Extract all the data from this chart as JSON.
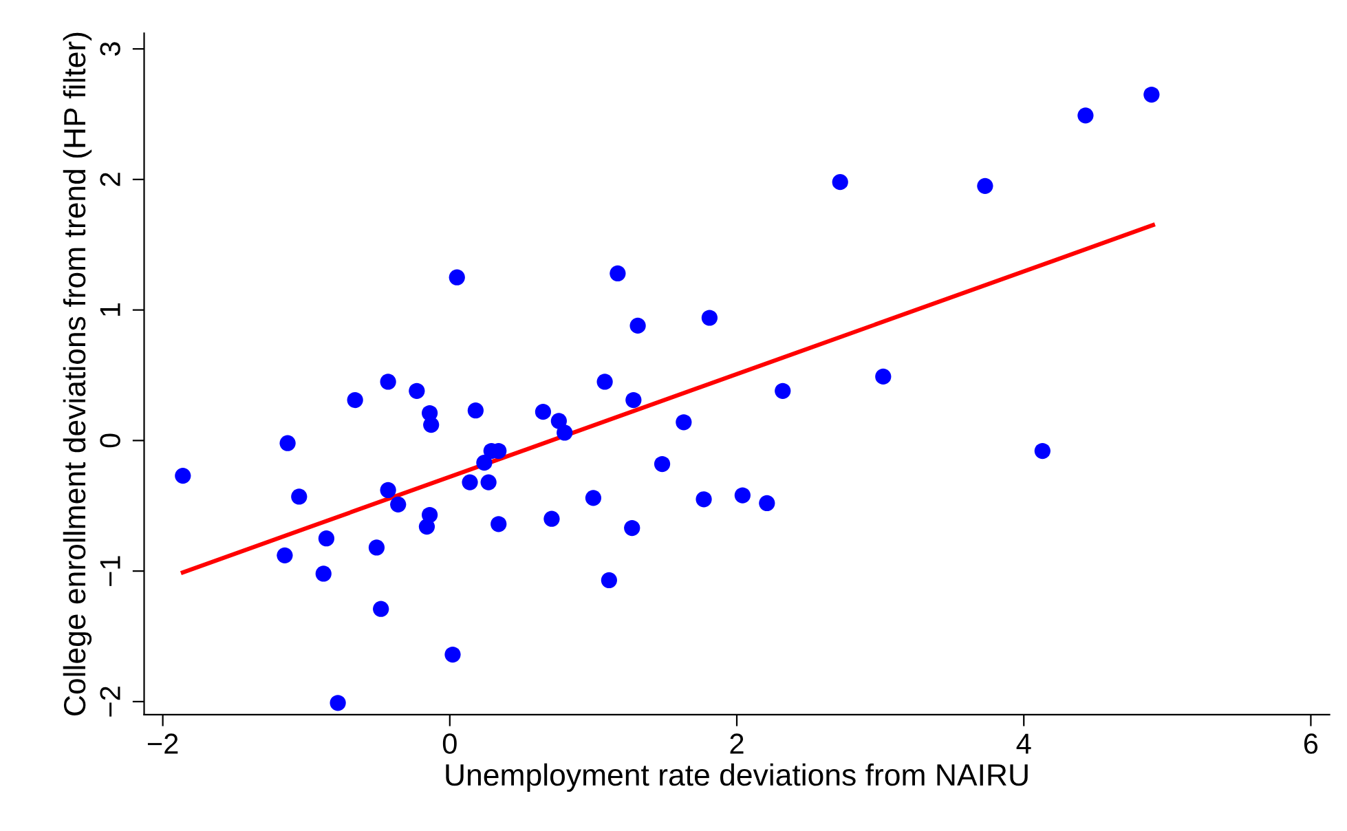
{
  "chart_data": {
    "type": "scatter",
    "xlabel": "Unemployment rate deviations from NAIRU",
    "ylabel": "College enrollment deviations from trend (HP filter)",
    "xlim": [
      -2.13,
      6.13
    ],
    "ylim": [
      -2.1,
      3.12
    ],
    "xticks": [
      {
        "value": -2,
        "label": "−2"
      },
      0,
      2,
      4,
      6
    ],
    "yticks": [
      {
        "value": -2,
        "label": "−2"
      },
      {
        "value": -1,
        "label": "−1"
      },
      0,
      1,
      2,
      3
    ],
    "grid": false,
    "legend": false,
    "marker": "circle",
    "series": [
      {
        "color": "#0000ff",
        "x": [
          -1.86,
          -1.13,
          -1.05,
          -0.66,
          -0.43,
          -0.23,
          -0.14,
          -0.13,
          0.05,
          0.18,
          0.29,
          0.34,
          0.24,
          0.14,
          0.27,
          -0.43,
          -0.36,
          -0.14,
          -0.16,
          0.34,
          -0.86,
          -1.15,
          -0.51,
          -0.88,
          -0.48,
          0.02,
          -0.78,
          0.65,
          0.76,
          0.8,
          1.0,
          0.71,
          1.17,
          1.31,
          1.81,
          1.08,
          1.28,
          2.32,
          3.02,
          1.63,
          1.48,
          1.77,
          2.04,
          2.21,
          1.27,
          1.11,
          2.72,
          3.73,
          4.43,
          4.89,
          4.13
        ],
        "values": [
          -0.27,
          -0.02,
          -0.43,
          0.31,
          0.45,
          0.38,
          0.21,
          0.12,
          1.25,
          0.23,
          -0.08,
          -0.08,
          -0.17,
          -0.32,
          -0.32,
          -0.38,
          -0.49,
          -0.57,
          -0.66,
          -0.64,
          -0.75,
          -0.88,
          -0.82,
          -1.02,
          -1.29,
          -1.64,
          -2.01,
          0.22,
          0.15,
          0.06,
          -0.44,
          -0.6,
          1.28,
          0.88,
          0.94,
          0.45,
          0.31,
          0.38,
          0.49,
          0.14,
          -0.18,
          -0.45,
          -0.42,
          -0.48,
          -0.67,
          -1.07,
          1.98,
          1.95,
          2.49,
          2.65,
          -0.08
        ]
      },
      {
        "type": "line",
        "color": "#ff0000",
        "x": [
          -1.86,
          4.9
        ],
        "values": [
          -1.01,
          1.65
        ],
        "marker": "none",
        "line_style": "solid"
      }
    ]
  }
}
